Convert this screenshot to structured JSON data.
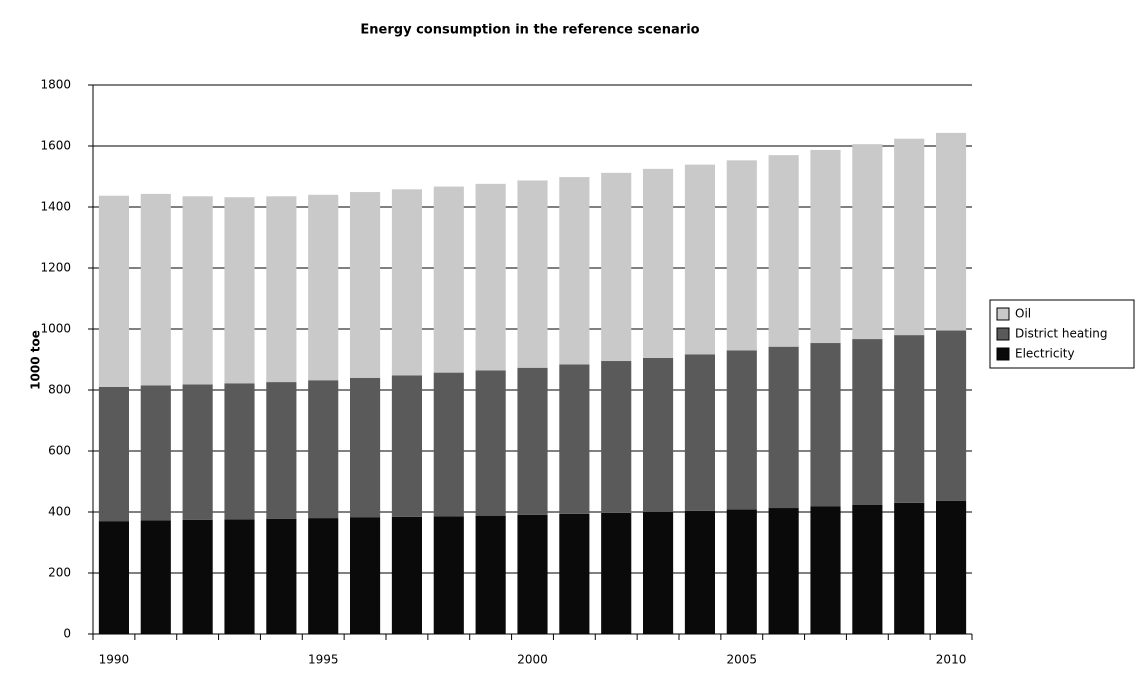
{
  "chart_data": {
    "type": "stacked_bar",
    "title": "Energy consumption in the reference scenario",
    "y_label": "1000 toe",
    "categories": [
      "1990",
      null,
      null,
      null,
      null,
      "1995",
      null,
      null,
      null,
      null,
      "2000",
      null,
      null,
      null,
      null,
      "2005",
      null,
      null,
      null,
      null,
      "2010"
    ],
    "series": [
      {
        "name": "Electricity",
        "color": "#0a0a0a",
        "values": [
          370,
          372,
          374,
          376,
          378,
          380,
          382,
          384,
          386,
          388,
          391,
          394,
          397,
          400,
          404,
          408,
          413,
          418,
          424,
          430,
          437
        ]
      },
      {
        "name": "District heating",
        "color": "#5a5a5a",
        "values": [
          440,
          443,
          444,
          446,
          448,
          452,
          458,
          464,
          471,
          476,
          482,
          490,
          498,
          505,
          513,
          522,
          529,
          536,
          543,
          550,
          558
        ]
      },
      {
        "name": "Oil",
        "color": "#c9c9c9",
        "values": [
          627,
          628,
          617,
          610,
          609,
          608,
          609,
          610,
          610,
          612,
          614,
          614,
          617,
          620,
          622,
          623,
          628,
          633,
          639,
          644,
          648
        ]
      }
    ],
    "ylim": [
      0,
      1800
    ],
    "yticks": [
      0,
      200,
      400,
      600,
      800,
      1000,
      1200,
      1400,
      1600,
      1800
    ],
    "grid": true,
    "legend": "right"
  }
}
